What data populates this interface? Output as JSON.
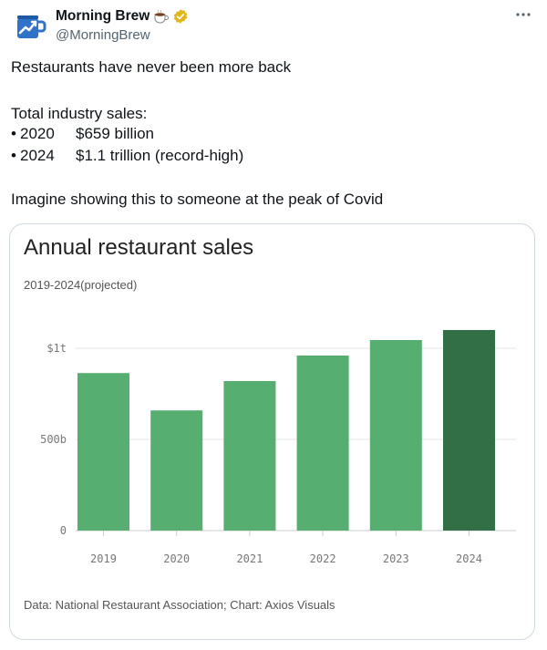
{
  "author": {
    "name": "Morning Brew",
    "handle": "@MorningBrew",
    "emoji_icon": "coffee-cup-icon",
    "verified_icon": "gold-verified-badge-icon",
    "avatar_icon": "blue-mug-chart-logo"
  },
  "menu": {
    "more_icon": "more-dots-icon"
  },
  "tweet": {
    "line1": "Restaurants have never been more back",
    "line2": "Total industry sales:",
    "bullets": [
      {
        "dot": "•",
        "year": "2020",
        "value": "$659 billion"
      },
      {
        "dot": "•",
        "year": "2024",
        "value": "$1.1 trillion (record-high)"
      }
    ],
    "line3": "Imagine showing this to someone at the peak of Covid"
  },
  "card": {
    "title": "Annual restaurant sales",
    "subtitle": "2019-2024(projected)",
    "source": "Data: National Restaurant Association; Chart: Axios Visuals"
  },
  "chart_data": {
    "type": "bar",
    "title": "Annual restaurant sales",
    "subtitle": "2019-2024(projected)",
    "categories": [
      "2019",
      "2020",
      "2021",
      "2022",
      "2023",
      "2024"
    ],
    "values": [
      864,
      659,
      820,
      960,
      1045,
      1100
    ],
    "unit": "billion USD",
    "ylim": [
      0,
      1100
    ],
    "yticks": [
      {
        "value": 0,
        "label": "0"
      },
      {
        "value": 500,
        "label": "500b"
      },
      {
        "value": 1000,
        "label": "$1t"
      }
    ],
    "grid": true,
    "bar_color": "#56ae71",
    "highlight_color": "#336f46",
    "highlight_category": "2024"
  }
}
